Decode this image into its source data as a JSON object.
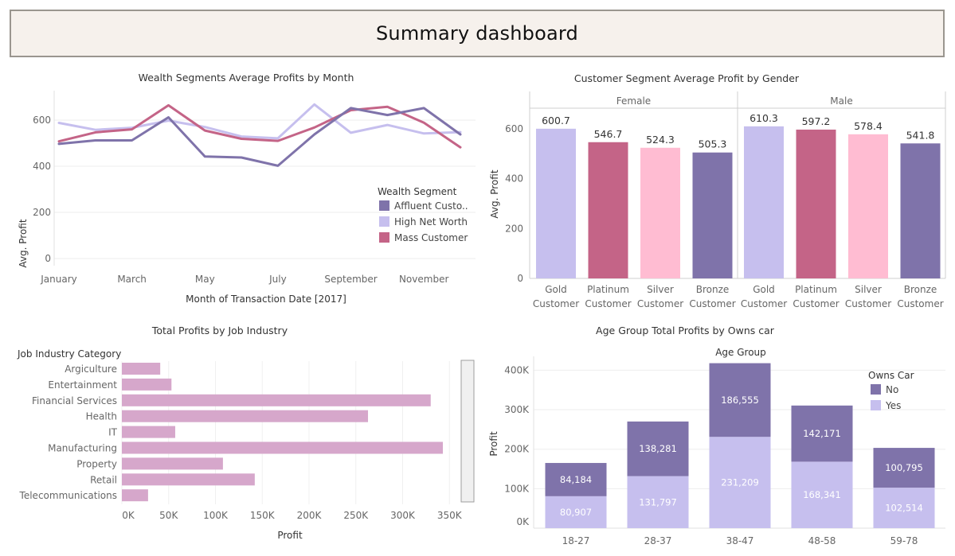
{
  "dashboard": {
    "title": "Summary dashboard"
  },
  "chart_data": [
    {
      "id": "wealth-line",
      "type": "line",
      "title": "Wealth Segments Average Profits by Month",
      "xlabel": "Month of Transaction Date [2017]",
      "ylabel": "Avg. Profit",
      "x": [
        "January",
        "February",
        "March",
        "April",
        "May",
        "June",
        "July",
        "August",
        "September",
        "October",
        "November",
        "December"
      ],
      "x_tick_labels": [
        "January",
        "March",
        "May",
        "July",
        "September",
        "November"
      ],
      "y_ticks": [
        "0",
        "200",
        "400",
        "600"
      ],
      "ylim": [
        0,
        700
      ],
      "grid": true,
      "legend_title": "Wealth Segment",
      "legend_position": "right",
      "series": [
        {
          "name": "Affluent Custo..",
          "color": "#7f73aa",
          "values": [
            497,
            512,
            512,
            612,
            442,
            438,
            402,
            538,
            652,
            622,
            652,
            538
          ]
        },
        {
          "name": "High Net Worth",
          "color": "#c6bfee",
          "values": [
            588,
            558,
            567,
            598,
            570,
            529,
            521,
            668,
            545,
            579,
            542,
            548
          ]
        },
        {
          "name": "Mass Customer",
          "color": "#c46487",
          "values": [
            508,
            547,
            560,
            664,
            555,
            519,
            510,
            568,
            643,
            658,
            589,
            482
          ]
        }
      ]
    },
    {
      "id": "gender-bar",
      "type": "bar",
      "title": "Customer Segment Average Profit by Gender",
      "ylabel": "Avg. Profit",
      "y_ticks": [
        "0",
        "200",
        "400",
        "600"
      ],
      "ylim": [
        0,
        680
      ],
      "panels": [
        {
          "name": "Female",
          "categories": [
            "Gold Customer",
            "Platinum Customer",
            "Silver Customer",
            "Bronze Customer"
          ],
          "values": [
            600.7,
            546.7,
            524.3,
            505.3
          ],
          "labels": [
            "600.7",
            "546.7",
            "524.3",
            "505.3"
          ]
        },
        {
          "name": "Male",
          "categories": [
            "Gold Customer",
            "Platinum Customer",
            "Silver Customer",
            "Bronze Customer"
          ],
          "values": [
            610.3,
            597.2,
            578.4,
            541.8
          ],
          "labels": [
            "610.3",
            "597.2",
            "578.4",
            "541.8"
          ]
        }
      ],
      "category_lines": [
        [
          "Gold",
          "Customer"
        ],
        [
          "Platinum",
          "Customer"
        ],
        [
          "Silver",
          "Customer"
        ],
        [
          "Bronze",
          "Customer"
        ]
      ],
      "colors": [
        "#c6bfee",
        "#c46487",
        "#ffbcd2",
        "#7f73aa"
      ]
    },
    {
      "id": "job-hbar",
      "type": "bar",
      "orientation": "horizontal",
      "title": "Total Profits by Job Industry",
      "category_header": "Job Industry Category",
      "xlabel": "Profit",
      "categories": [
        "Argiculture",
        "Entertainment",
        "Financial Services",
        "Health",
        "IT",
        "Manufacturing",
        "Property",
        "Retail",
        "Telecommunications"
      ],
      "values": [
        41000,
        53000,
        330000,
        263000,
        57000,
        343000,
        108000,
        142000,
        28000
      ],
      "x_ticks": [
        "0K",
        "50K",
        "100K",
        "150K",
        "200K",
        "250K",
        "300K",
        "350K"
      ],
      "xlim": [
        0,
        360000
      ],
      "color": "#d6a7cb"
    },
    {
      "id": "age-stacked",
      "type": "bar",
      "stacked": true,
      "title": "Age Group  Total Profits by Owns car",
      "column_header": "Age Group",
      "ylabel": "Profit",
      "categories": [
        "18-27",
        "28-37",
        "38-47",
        "48-58",
        "59-78"
      ],
      "y_ticks": [
        "0K",
        "100K",
        "200K",
        "300K",
        "400K"
      ],
      "ylim": [
        0,
        425000
      ],
      "legend_title": "Owns Car",
      "legend_position": "top-right",
      "series": [
        {
          "name": "Yes",
          "color": "#c6bfee",
          "values": [
            80907,
            131797,
            231209,
            168341,
            102514
          ],
          "labels": [
            "80,907",
            "131,797",
            "231,209",
            "168,341",
            "102,514"
          ]
        },
        {
          "name": "No",
          "color": "#7f73aa",
          "values": [
            84184,
            138281,
            186555,
            142171,
            100795
          ],
          "labels": [
            "84,184",
            "138,281",
            "186,555",
            "142,171",
            "100,795"
          ]
        }
      ]
    }
  ]
}
